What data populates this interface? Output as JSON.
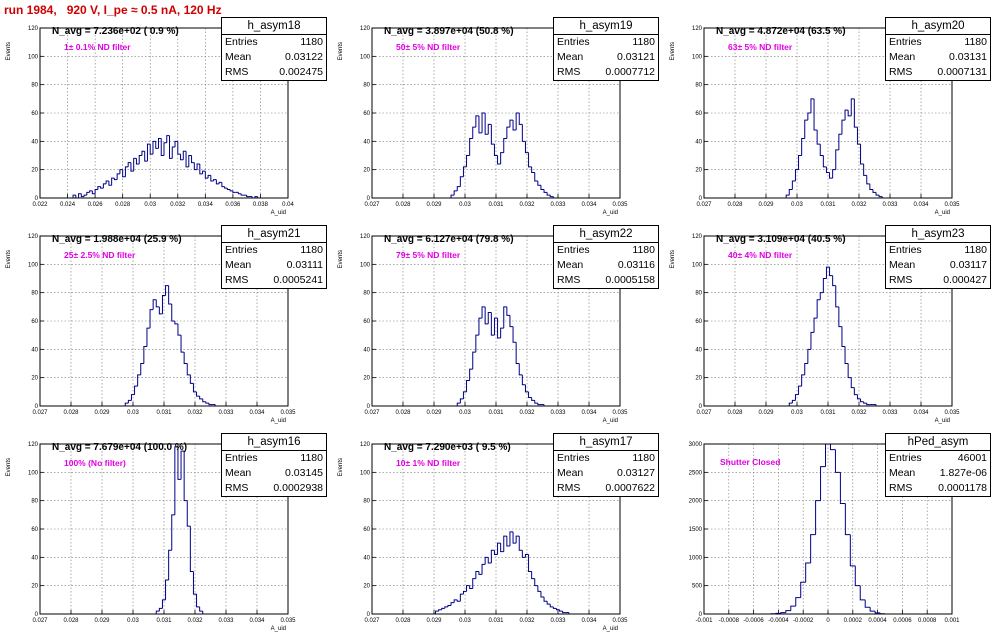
{
  "run_title": "run 1984,   920 V, I_pe ≈ 0.5 nA, 120 Hz",
  "stats_labels": {
    "entries": "Entries",
    "mean": "Mean",
    "rms": "RMS"
  },
  "line_color": "#000088",
  "chart_data": [
    {
      "type": "bar",
      "name": "h_asym18",
      "title": "N_avg = 7.236e+02 ( 0.9 %)",
      "annotation": "1± 0.1% ND filter",
      "xlabel": "A_uid",
      "ylabel": "Events",
      "xlim": [
        0.022,
        0.04
      ],
      "ylim": [
        0,
        120
      ],
      "xticks": [
        "0.022",
        "0.024",
        "0.026",
        "0.028",
        "0.03",
        "0.032",
        "0.034",
        "0.036",
        "0.038",
        "0.04"
      ],
      "yticks": [
        "0",
        "20",
        "40",
        "60",
        "80",
        "100",
        "120"
      ],
      "stats": {
        "entries": "1180",
        "mean": "0.03122",
        "rms": "0.002475"
      },
      "x": [
        0.0245,
        0.0247,
        0.0249,
        0.0251,
        0.0253,
        0.0255,
        0.0257,
        0.0259,
        0.0261,
        0.0263,
        0.0265,
        0.0267,
        0.0269,
        0.0271,
        0.0273,
        0.0275,
        0.0277,
        0.0279,
        0.0281,
        0.0283,
        0.0285,
        0.0287,
        0.0289,
        0.0291,
        0.0293,
        0.0295,
        0.0297,
        0.0299,
        0.0301,
        0.0303,
        0.0305,
        0.0307,
        0.0309,
        0.0311,
        0.0313,
        0.0315,
        0.0317,
        0.0319,
        0.0321,
        0.0323,
        0.0325,
        0.0327,
        0.0329,
        0.0331,
        0.0333,
        0.0335,
        0.0337,
        0.0339,
        0.0341,
        0.0343,
        0.0345,
        0.0347,
        0.0349,
        0.0351,
        0.0353,
        0.0355,
        0.0357,
        0.0359,
        0.0361,
        0.0363,
        0.0365,
        0.0367,
        0.0369,
        0.0371,
        0.0373,
        0.0375,
        0.0377
      ],
      "values": [
        2,
        0,
        3,
        1,
        2,
        4,
        5,
        3,
        6,
        8,
        7,
        10,
        12,
        9,
        14,
        13,
        17,
        20,
        15,
        22,
        25,
        19,
        28,
        24,
        30,
        33,
        26,
        38,
        31,
        40,
        35,
        42,
        30,
        39,
        44,
        28,
        36,
        40,
        31,
        27,
        33,
        22,
        30,
        25,
        20,
        24,
        17,
        19,
        14,
        16,
        12,
        13,
        10,
        11,
        8,
        7,
        6,
        5,
        4,
        4,
        3,
        2,
        2,
        1,
        1,
        0,
        1
      ]
    },
    {
      "type": "bar",
      "name": "h_asym19",
      "title": "N_avg = 3.897e+04 (50.8 %)",
      "annotation": "50± 5% ND filter",
      "xlabel": "A_uid",
      "ylabel": "Events",
      "xlim": [
        0.027,
        0.035
      ],
      "ylim": [
        0,
        120
      ],
      "xticks": [
        "0.027",
        "0.028",
        "0.029",
        "0.03",
        "0.031",
        "0.032",
        "0.033",
        "0.034",
        "0.035"
      ],
      "yticks": [
        "0",
        "20",
        "40",
        "60",
        "80",
        "100",
        "120"
      ],
      "stats": {
        "entries": "1180",
        "mean": "0.03121",
        "rms": "0.0007712"
      },
      "x": [
        0.0296,
        0.0297,
        0.0298,
        0.0299,
        0.03,
        0.0301,
        0.0302,
        0.0303,
        0.0304,
        0.0305,
        0.0306,
        0.0307,
        0.0308,
        0.0309,
        0.031,
        0.0311,
        0.0312,
        0.0313,
        0.0314,
        0.0315,
        0.0316,
        0.0317,
        0.0318,
        0.0319,
        0.032,
        0.0321,
        0.0322,
        0.0323,
        0.0324,
        0.0325,
        0.0326,
        0.0327,
        0.0328
      ],
      "values": [
        2,
        5,
        8,
        15,
        22,
        30,
        42,
        50,
        58,
        46,
        60,
        45,
        52,
        38,
        30,
        24,
        32,
        42,
        50,
        55,
        48,
        60,
        52,
        40,
        32,
        22,
        18,
        12,
        9,
        6,
        4,
        2,
        1
      ]
    },
    {
      "type": "bar",
      "name": "h_asym20",
      "title": "N_avg = 4.872e+04 (63.5 %)",
      "annotation": "63± 5% ND filter",
      "xlabel": "A_uid",
      "ylabel": "Events",
      "xlim": [
        0.027,
        0.035
      ],
      "ylim": [
        0,
        120
      ],
      "xticks": [
        "0.027",
        "0.028",
        "0.029",
        "0.03",
        "0.031",
        "0.032",
        "0.033",
        "0.034",
        "0.035"
      ],
      "yticks": [
        "0",
        "20",
        "40",
        "60",
        "80",
        "100",
        "120"
      ],
      "stats": {
        "entries": "1180",
        "mean": "0.03131",
        "rms": "0.0007131"
      },
      "x": [
        0.0297,
        0.0298,
        0.0299,
        0.03,
        0.0301,
        0.0302,
        0.0303,
        0.0304,
        0.0305,
        0.0306,
        0.0307,
        0.0308,
        0.0309,
        0.031,
        0.0311,
        0.0312,
        0.0313,
        0.0314,
        0.0315,
        0.0316,
        0.0317,
        0.0318,
        0.0319,
        0.032,
        0.0321,
        0.0322,
        0.0323,
        0.0324,
        0.0325,
        0.0326,
        0.0327
      ],
      "values": [
        2,
        6,
        12,
        20,
        30,
        42,
        55,
        60,
        70,
        48,
        38,
        30,
        22,
        18,
        14,
        20,
        34,
        45,
        55,
        62,
        58,
        70,
        50,
        38,
        24,
        16,
        10,
        6,
        4,
        2,
        1
      ]
    },
    {
      "type": "bar",
      "name": "h_asym21",
      "title": "N_avg = 1.988e+04 (25.9 %)",
      "annotation": "25± 2.5% ND filter",
      "xlabel": "A_uid",
      "ylabel": "Events",
      "xlim": [
        0.027,
        0.035
      ],
      "ylim": [
        0,
        120
      ],
      "xticks": [
        "0.027",
        "0.028",
        "0.029",
        "0.03",
        "0.031",
        "0.032",
        "0.033",
        "0.034",
        "0.035"
      ],
      "yticks": [
        "0",
        "20",
        "40",
        "60",
        "80",
        "100",
        "120"
      ],
      "stats": {
        "entries": "1180",
        "mean": "0.03111",
        "rms": "0.0005241"
      },
      "x": [
        0.0298,
        0.0299,
        0.03,
        0.0301,
        0.0302,
        0.0303,
        0.0304,
        0.0305,
        0.0306,
        0.0307,
        0.0308,
        0.0309,
        0.031,
        0.0311,
        0.0312,
        0.0313,
        0.0314,
        0.0315,
        0.0316,
        0.0317,
        0.0318,
        0.0319,
        0.032,
        0.0321,
        0.0322,
        0.0323,
        0.0324,
        0.0325,
        0.0326
      ],
      "values": [
        2,
        4,
        8,
        14,
        22,
        30,
        42,
        55,
        68,
        75,
        70,
        65,
        78,
        85,
        72,
        60,
        58,
        50,
        38,
        30,
        22,
        16,
        10,
        7,
        5,
        3,
        2,
        1,
        1
      ]
    },
    {
      "type": "bar",
      "name": "h_asym22",
      "title": "N_avg = 6.127e+04 (79.8 %)",
      "annotation": "79± 5% ND filter",
      "xlabel": "A_uid",
      "ylabel": "Events",
      "xlim": [
        0.027,
        0.035
      ],
      "ylim": [
        0,
        120
      ],
      "xticks": [
        "0.027",
        "0.028",
        "0.029",
        "0.03",
        "0.031",
        "0.032",
        "0.033",
        "0.034",
        "0.035"
      ],
      "yticks": [
        "0",
        "20",
        "40",
        "60",
        "80",
        "100",
        "120"
      ],
      "stats": {
        "entries": "1180",
        "mean": "0.03116",
        "rms": "0.0005158"
      },
      "x": [
        0.0298,
        0.0299,
        0.03,
        0.0301,
        0.0302,
        0.0303,
        0.0304,
        0.0305,
        0.0306,
        0.0307,
        0.0308,
        0.0309,
        0.031,
        0.0311,
        0.0312,
        0.0313,
        0.0314,
        0.0315,
        0.0316,
        0.0317,
        0.0318,
        0.0319,
        0.032,
        0.0321,
        0.0322,
        0.0323,
        0.0324,
        0.0325
      ],
      "values": [
        2,
        5,
        10,
        18,
        26,
        38,
        50,
        62,
        70,
        58,
        66,
        50,
        62,
        48,
        55,
        70,
        64,
        56,
        45,
        30,
        22,
        15,
        10,
        6,
        4,
        2,
        1,
        1
      ]
    },
    {
      "type": "bar",
      "name": "h_asym23",
      "title": "N_avg = 3.109e+04 (40.5 %)",
      "annotation": "40± 4% ND filter",
      "xlabel": "A_uid",
      "ylabel": "Events",
      "xlim": [
        0.027,
        0.035
      ],
      "ylim": [
        0,
        120
      ],
      "xticks": [
        "0.027",
        "0.028",
        "0.029",
        "0.03",
        "0.031",
        "0.032",
        "0.033",
        "0.034",
        "0.035"
      ],
      "yticks": [
        "0",
        "20",
        "40",
        "60",
        "80",
        "100",
        "120"
      ],
      "stats": {
        "entries": "1180",
        "mean": "0.03117",
        "rms": "0.000427"
      },
      "x": [
        0.0298,
        0.0299,
        0.03,
        0.0301,
        0.0302,
        0.0303,
        0.0304,
        0.0305,
        0.0306,
        0.0307,
        0.0308,
        0.0309,
        0.031,
        0.0311,
        0.0312,
        0.0313,
        0.0314,
        0.0315,
        0.0316,
        0.0317,
        0.0318,
        0.0319,
        0.032,
        0.0321,
        0.0322,
        0.0323,
        0.0324,
        0.0325
      ],
      "values": [
        2,
        4,
        8,
        14,
        22,
        30,
        40,
        52,
        62,
        75,
        80,
        90,
        98,
        92,
        85,
        70,
        56,
        42,
        30,
        20,
        13,
        8,
        5,
        3,
        2,
        1,
        1,
        1
      ]
    },
    {
      "type": "bar",
      "name": "h_asym16",
      "title": "N_avg = 7.679e+04 (100.0 %)",
      "annotation": "100% (No filter)",
      "xlabel": "A_uid",
      "ylabel": "Events",
      "xlim": [
        0.027,
        0.035
      ],
      "ylim": [
        0,
        120
      ],
      "xticks": [
        "0.027",
        "0.028",
        "0.029",
        "0.03",
        "0.031",
        "0.032",
        "0.033",
        "0.034",
        "0.035"
      ],
      "yticks": [
        "0",
        "20",
        "40",
        "60",
        "80",
        "100",
        "120"
      ],
      "stats": {
        "entries": "1180",
        "mean": "0.03145",
        "rms": "0.0002938"
      },
      "x": [
        0.0308,
        0.0309,
        0.031,
        0.0311,
        0.0312,
        0.0313,
        0.0314,
        0.0315,
        0.0316,
        0.0317,
        0.0318,
        0.0319,
        0.032,
        0.0321,
        0.0322
      ],
      "values": [
        2,
        4,
        10,
        24,
        45,
        70,
        118,
        95,
        115,
        80,
        62,
        30,
        14,
        5,
        2
      ]
    },
    {
      "type": "bar",
      "name": "h_asym17",
      "title": "N_avg = 7.290e+03 ( 9.5 %)",
      "annotation": "10± 1% ND filter",
      "xlabel": "A_uid",
      "ylabel": "Events",
      "xlim": [
        0.027,
        0.035
      ],
      "ylim": [
        0,
        120
      ],
      "xticks": [
        "0.027",
        "0.028",
        "0.029",
        "0.03",
        "0.031",
        "0.032",
        "0.033",
        "0.034",
        "0.035"
      ],
      "yticks": [
        "0",
        "20",
        "40",
        "60",
        "80",
        "100",
        "120"
      ],
      "stats": {
        "entries": "1180",
        "mean": "0.03127",
        "rms": "0.0007622"
      },
      "x": [
        0.0291,
        0.0292,
        0.0293,
        0.0294,
        0.0295,
        0.0296,
        0.0297,
        0.0298,
        0.0299,
        0.03,
        0.0301,
        0.0302,
        0.0303,
        0.0304,
        0.0305,
        0.0306,
        0.0307,
        0.0308,
        0.0309,
        0.031,
        0.0311,
        0.0312,
        0.0313,
        0.0314,
        0.0315,
        0.0316,
        0.0317,
        0.0318,
        0.0319,
        0.032,
        0.0321,
        0.0322,
        0.0323,
        0.0324,
        0.0325,
        0.0326,
        0.0327,
        0.0328,
        0.0329,
        0.033,
        0.0331,
        0.0332,
        0.0333
      ],
      "values": [
        2,
        3,
        4,
        5,
        6,
        8,
        10,
        9,
        14,
        16,
        20,
        18,
        25,
        30,
        28,
        35,
        40,
        36,
        45,
        42,
        50,
        44,
        55,
        48,
        58,
        50,
        55,
        45,
        40,
        42,
        30,
        25,
        20,
        16,
        12,
        9,
        7,
        5,
        4,
        3,
        2,
        1,
        1
      ]
    },
    {
      "type": "bar",
      "name": "hPed_asym",
      "title": "",
      "annotation": "Shutter Closed",
      "xlabel": "",
      "ylabel": "",
      "xlim": [
        -0.001,
        0.001
      ],
      "ylim": [
        0,
        3000
      ],
      "xticks": [
        "-0.001",
        "-0.0008",
        "-0.0006",
        "-0.0004",
        "-0.0002",
        "0",
        "0.0002",
        "0.0004",
        "0.0006",
        "0.0008",
        "0.001"
      ],
      "yticks": [
        "0",
        "500",
        "1000",
        "1500",
        "2000",
        "2500",
        "3000"
      ],
      "stats": {
        "entries": "46001",
        "mean": "1.827e-06",
        "rms": "0.0001178"
      },
      "x": [
        -0.00044,
        -0.0004,
        -0.00036,
        -0.00032,
        -0.00028,
        -0.00024,
        -0.0002,
        -0.00016,
        -0.00012,
        -8e-05,
        -4e-05,
        0,
        4e-05,
        8e-05,
        0.00012,
        0.00016,
        0.0002,
        0.00024,
        0.00028,
        0.00032,
        0.00036,
        0.0004,
        0.00044
      ],
      "values": [
        5,
        10,
        25,
        60,
        140,
        290,
        560,
        900,
        1400,
        2000,
        2600,
        3000,
        2900,
        2500,
        1950,
        1400,
        850,
        500,
        250,
        120,
        50,
        20,
        5
      ]
    }
  ]
}
